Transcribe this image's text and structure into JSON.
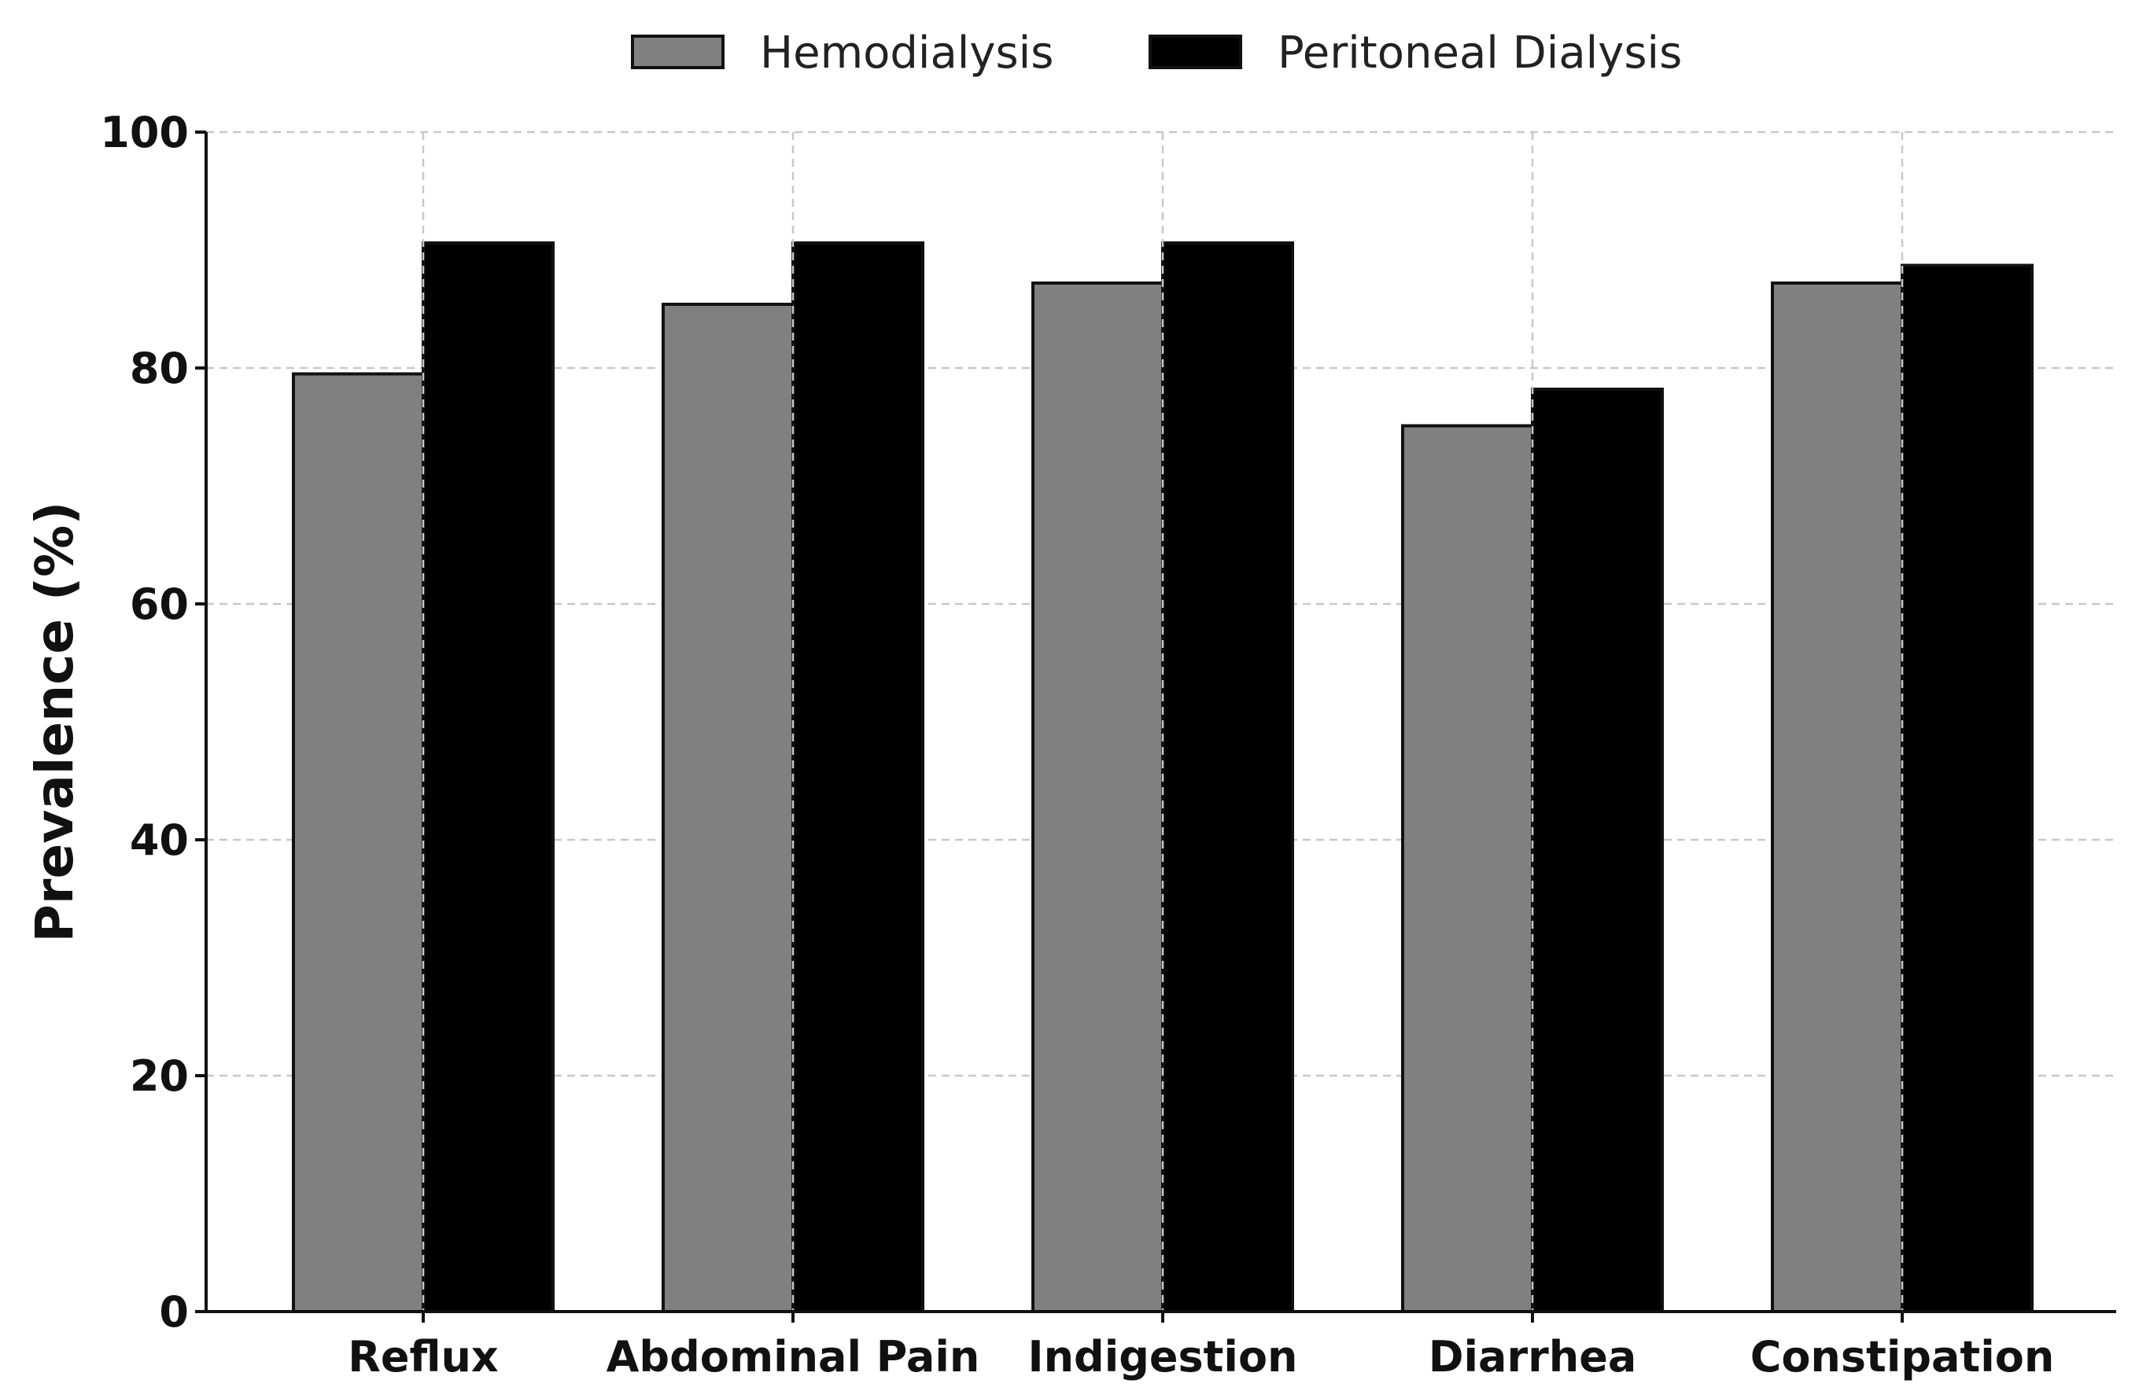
{
  "chart_data": {
    "type": "bar",
    "categories": [
      "Reflux",
      "Abdominal Pain",
      "Indigestion",
      "Diarrhea",
      "Constipation"
    ],
    "series": [
      {
        "name": "Hemodialysis",
        "color": "#808080",
        "values": [
          79.5,
          85.4,
          87.2,
          75.1,
          87.2
        ]
      },
      {
        "name": "Peritoneal Dialysis",
        "color": "#000000",
        "values": [
          90.6,
          90.6,
          90.6,
          78.2,
          88.7
        ]
      }
    ],
    "title": "",
    "xlabel": "",
    "ylabel": "Prevalence (%)",
    "ylim": [
      0,
      100
    ],
    "yticks": [
      "0",
      "20",
      "40",
      "60",
      "80",
      "100"
    ],
    "grid": true,
    "legend_position": "top-center"
  }
}
